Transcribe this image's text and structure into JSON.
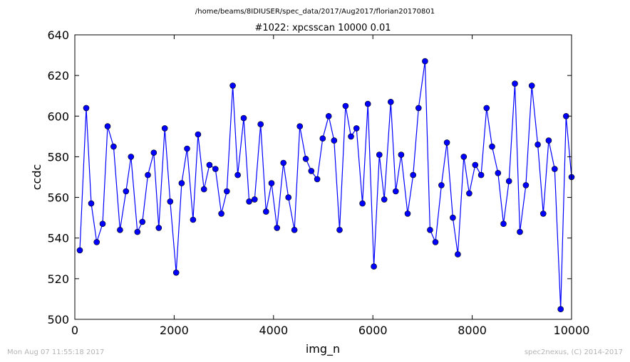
{
  "chart_data": {
    "type": "scatter",
    "suptitle": "/home/beams/8IDIUSER/spec_data/2017/Aug2017/florian20170801",
    "title": "#1022: xpcsscan 10000 0.01",
    "xlabel": "img_n",
    "ylabel": "ccdc",
    "xlim": [
      0,
      10000
    ],
    "ylim": [
      500,
      640
    ],
    "xticks": [
      "0",
      "2000",
      "4000",
      "6000",
      "8000",
      "10000"
    ],
    "yticks": [
      "500",
      "520",
      "540",
      "560",
      "580",
      "600",
      "620",
      "640"
    ],
    "grid": false,
    "line_color": "#0000ff",
    "marker_color": "#0000ff",
    "marker": "circle",
    "x": [
      100,
      230,
      330,
      440,
      560,
      660,
      780,
      910,
      1030,
      1130,
      1260,
      1360,
      1470,
      1590,
      1690,
      1810,
      1920,
      2040,
      2150,
      2260,
      2380,
      2480,
      2600,
      2710,
      2830,
      2950,
      3060,
      3180,
      3280,
      3400,
      3510,
      3620,
      3740,
      3850,
      3960,
      4070,
      4200,
      4300,
      4420,
      4530,
      4650,
      4760,
      4880,
      4990,
      5110,
      5220,
      5330,
      5450,
      5560,
      5670,
      5790,
      5900,
      6020,
      6130,
      6230,
      6360,
      6460,
      6570,
      6700,
      6810,
      6920,
      7050,
      7150,
      7260,
      7380,
      7490,
      7610,
      7710,
      7830,
      7940,
      8060,
      8180,
      8290,
      8400,
      8520,
      8630,
      8740,
      8860,
      8960,
      9080,
      9200,
      9320,
      9430,
      9540,
      9660,
      9780,
      9890,
      10000
    ],
    "y": [
      534,
      604,
      557,
      538,
      547,
      595,
      585,
      544,
      563,
      580,
      543,
      548,
      571,
      582,
      545,
      594,
      558,
      523,
      567,
      584,
      549,
      591,
      564,
      576,
      574,
      552,
      563,
      615,
      571,
      599,
      558,
      559,
      596,
      553,
      567,
      545,
      577,
      560,
      544,
      595,
      579,
      573,
      569,
      589,
      600,
      588,
      544,
      605,
      590,
      594,
      557,
      606,
      526,
      581,
      559,
      607,
      563,
      581,
      552,
      571,
      604,
      627,
      544,
      538,
      566,
      587,
      550,
      532,
      580,
      562,
      576,
      571,
      604,
      585,
      572,
      547,
      568,
      616,
      543,
      566,
      615,
      586,
      552,
      588,
      574,
      505,
      600,
      570
    ]
  },
  "footer": {
    "timestamp": "Mon Aug 07 11:55:18 2017",
    "credit": "spec2nexus, (C) 2014-2017"
  }
}
